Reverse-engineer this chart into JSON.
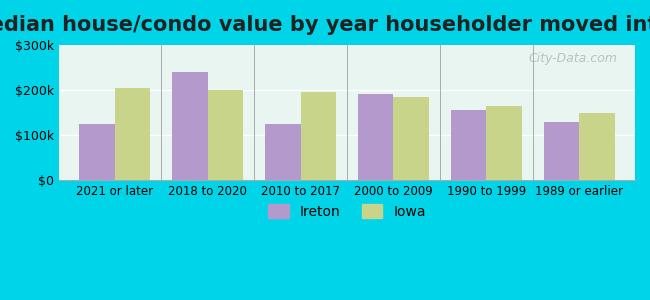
{
  "title": "Median house/condo value by year householder moved into unit",
  "categories": [
    "2021 or later",
    "2018 to 2020",
    "2010 to 2017",
    "2000 to 2009",
    "1990 to 1999",
    "1989 or earlier"
  ],
  "ireton_values": [
    125000,
    240000,
    125000,
    190000,
    155000,
    130000
  ],
  "iowa_values": [
    205000,
    200000,
    195000,
    185000,
    165000,
    150000
  ],
  "ireton_color": "#b399cc",
  "iowa_color": "#c8d48a",
  "background_outer": "#00d4e8",
  "background_inner_top": "#e8f5f0",
  "background_inner_bottom": "#d4edda",
  "ylim": [
    0,
    300000
  ],
  "yticks": [
    0,
    100000,
    200000,
    300000
  ],
  "ytick_labels": [
    "$0",
    "$100k",
    "$200k",
    "$300k"
  ],
  "legend_ireton": "Ireton",
  "legend_iowa": "Iowa",
  "title_fontsize": 15,
  "bar_width": 0.38,
  "watermark": "City-Data.com"
}
